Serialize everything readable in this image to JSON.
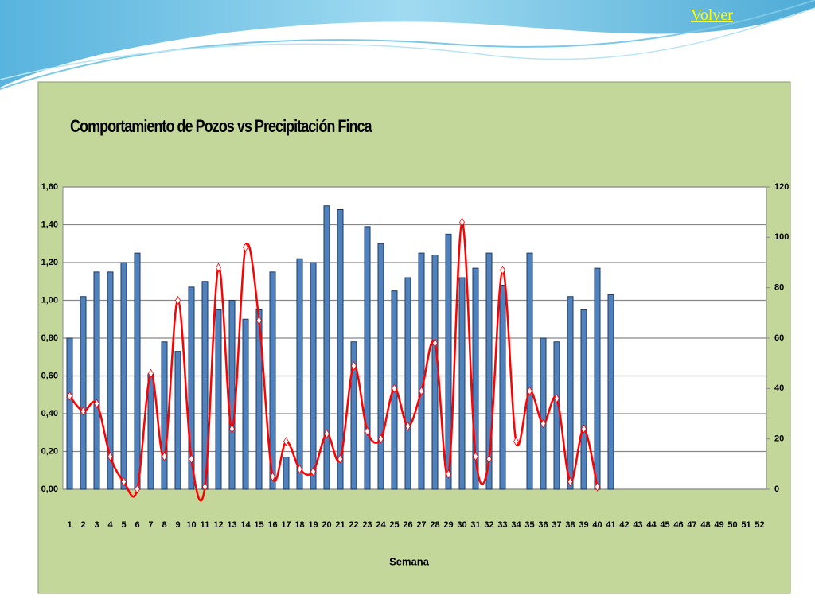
{
  "nav": {
    "link": "Volver"
  },
  "chart_data": {
    "type": "bar-line",
    "title": "Comportamiento de Pozos vs Precipitación Finca",
    "x_label": "Semana",
    "categories": [
      "1",
      "2",
      "3",
      "4",
      "5",
      "6",
      "7",
      "8",
      "9",
      "10",
      "11",
      "12",
      "13",
      "14",
      "15",
      "16",
      "17",
      "18",
      "19",
      "20",
      "21",
      "22",
      "23",
      "24",
      "25",
      "26",
      "27",
      "28",
      "29",
      "30",
      "31",
      "32",
      "33",
      "34",
      "35",
      "36",
      "37",
      "38",
      "39",
      "40",
      "41",
      "42",
      "43",
      "44",
      "45",
      "46",
      "47",
      "48",
      "49",
      "50",
      "51",
      "52"
    ],
    "series": [
      {
        "type": "bar",
        "color": "#4f81bd",
        "values": [
          0.8,
          1.02,
          1.15,
          1.15,
          1.2,
          1.25,
          0.61,
          0.78,
          0.73,
          1.07,
          1.1,
          0.95,
          1.0,
          0.9,
          0.95,
          1.15,
          0.17,
          1.22,
          1.2,
          1.5,
          1.48,
          0.78,
          1.39,
          1.3,
          1.05,
          1.12,
          1.25,
          1.24,
          1.35,
          1.12,
          1.17,
          1.25,
          1.08,
          0,
          1.25,
          0.8,
          0.78,
          1.02,
          0.95,
          1.17,
          1.03,
          null,
          null,
          null,
          null,
          null,
          null,
          null,
          null,
          null,
          null,
          null
        ]
      },
      {
        "type": "line",
        "axis": "y2",
        "color": "#ff0000",
        "values": [
          37,
          31,
          34,
          13,
          3,
          0,
          46,
          13,
          75,
          12,
          1,
          88,
          24,
          96,
          67,
          5,
          19,
          8,
          7,
          22,
          12,
          49,
          23,
          20,
          40,
          25,
          39,
          58,
          6,
          106,
          13,
          12,
          87,
          19,
          39,
          26,
          36,
          3,
          24,
          1,
          null,
          null,
          null,
          null,
          null,
          null,
          null,
          null,
          null,
          null,
          null,
          null
        ]
      }
    ],
    "ylim": [
      0,
      1.6
    ],
    "yticks": [
      {
        "value": 0,
        "label": "0,00"
      },
      {
        "value": 0.2,
        "label": "0,20"
      },
      {
        "value": 0.4,
        "label": "0,40"
      },
      {
        "value": 0.6,
        "label": "0,60"
      },
      {
        "value": 0.8,
        "label": "0,80"
      },
      {
        "value": 1.0,
        "label": "1,00"
      },
      {
        "value": 1.2,
        "label": "1,20"
      },
      {
        "value": 1.4,
        "label": "1,40"
      },
      {
        "value": 1.6,
        "label": "1,60"
      }
    ],
    "y2lim": [
      0,
      120
    ],
    "y2ticks": [
      0,
      20,
      40,
      60,
      80,
      100,
      120
    ],
    "grid": true
  }
}
